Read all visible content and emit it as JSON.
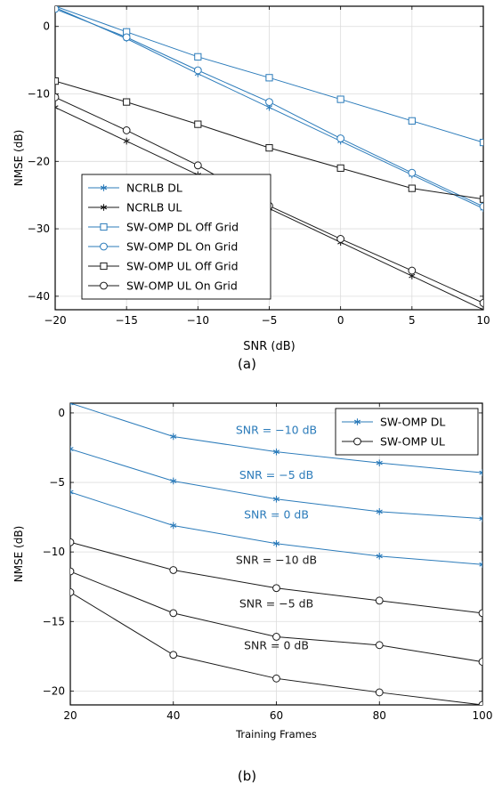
{
  "figure": {
    "captions": [
      "(a)",
      "(b)"
    ]
  },
  "colors": {
    "blue": "#2b7bba",
    "black": "#1a1a1a",
    "grid": "#dcdcdc"
  },
  "chart_data": [
    {
      "type": "line",
      "xlabel": "SNR (dB)",
      "ylabel": "NMSE (dB)",
      "xlim": [
        -20,
        10
      ],
      "ylim": [
        -42,
        3
      ],
      "xticks": [
        -20,
        -15,
        -10,
        -5,
        0,
        5,
        10
      ],
      "yticks": [
        0,
        -10,
        -20,
        -30,
        -40
      ],
      "xtick_labels": [
        "−20",
        "−15",
        "−10",
        "−5",
        "0",
        "5",
        "10"
      ],
      "ytick_labels": [
        "0",
        "−10",
        "−20",
        "−30",
        "−40"
      ],
      "grid": true,
      "legend_position": "bottom-left",
      "x": [
        -20,
        -15,
        -10,
        -5,
        0,
        5,
        10
      ],
      "series": [
        {
          "name": "NCRLB DL",
          "color": "blue",
          "marker": "star",
          "values": [
            2.8,
            -1.8,
            -7.0,
            -12.0,
            -17.0,
            -22.0,
            -27.0
          ]
        },
        {
          "name": "NCRLB UL",
          "color": "black",
          "marker": "star",
          "values": [
            -12.0,
            -17.0,
            -22.0,
            -27.0,
            -32.0,
            -37.0,
            -42.0
          ]
        },
        {
          "name": "SW-OMP DL Off Grid",
          "color": "blue",
          "marker": "square",
          "values": [
            3.0,
            -0.8,
            -4.5,
            -7.6,
            -10.8,
            -14.0,
            -17.2
          ]
        },
        {
          "name": "SW-OMP DL On Grid",
          "color": "blue",
          "marker": "circle",
          "values": [
            2.6,
            -1.6,
            -6.5,
            -11.2,
            -16.6,
            -21.7,
            -26.7
          ]
        },
        {
          "name": "SW-OMP UL Off Grid",
          "color": "black",
          "marker": "square",
          "values": [
            -8.1,
            -11.2,
            -14.5,
            -18.0,
            -21.0,
            -24.0,
            -25.6
          ]
        },
        {
          "name": "SW-OMP UL On Grid",
          "color": "black",
          "marker": "circle",
          "values": [
            -10.5,
            -15.4,
            -20.6,
            -26.6,
            -31.5,
            -36.2,
            -41.0
          ]
        }
      ]
    },
    {
      "type": "line",
      "xlabel": "Training Frames",
      "ylabel": "NMSE (dB)",
      "xlim": [
        20,
        100
      ],
      "ylim": [
        -21,
        0.7
      ],
      "xticks": [
        20,
        40,
        60,
        80,
        100
      ],
      "yticks": [
        0,
        -5,
        -10,
        -15,
        -20
      ],
      "xtick_labels": [
        "20",
        "40",
        "60",
        "80",
        "100"
      ],
      "ytick_labels": [
        "0",
        "−5",
        "−10",
        "−15",
        "−20"
      ],
      "grid": true,
      "legend_position": "top-right",
      "legend": [
        {
          "name": "SW-OMP DL",
          "color": "blue",
          "marker": "star"
        },
        {
          "name": "SW-OMP UL",
          "color": "black",
          "marker": "circle"
        }
      ],
      "x": [
        20,
        40,
        60,
        80,
        100
      ],
      "series": [
        {
          "color": "blue",
          "marker": "star",
          "values": [
            0.7,
            -1.7,
            -2.8,
            -3.6,
            -4.3
          ]
        },
        {
          "color": "blue",
          "marker": "star",
          "values": [
            -2.6,
            -4.9,
            -6.2,
            -7.1,
            -7.6
          ]
        },
        {
          "color": "blue",
          "marker": "star",
          "values": [
            -5.7,
            -8.1,
            -9.4,
            -10.3,
            -10.9
          ]
        },
        {
          "color": "black",
          "marker": "circle",
          "values": [
            -9.3,
            -11.3,
            -12.6,
            -13.5,
            -14.4
          ]
        },
        {
          "color": "black",
          "marker": "circle",
          "values": [
            -11.4,
            -14.4,
            -16.1,
            -16.7,
            -17.9
          ]
        },
        {
          "color": "black",
          "marker": "circle",
          "values": [
            -12.9,
            -17.4,
            -19.1,
            -20.1,
            -21.0
          ]
        }
      ],
      "annotations": [
        {
          "text": "SNR = −10 dB",
          "color": "blue",
          "x": 60,
          "y": -1.5
        },
        {
          "text": "SNR = −5 dB",
          "color": "blue",
          "x": 60,
          "y": -4.75
        },
        {
          "text": "SNR = 0 dB",
          "color": "blue",
          "x": 60,
          "y": -7.6
        },
        {
          "text": "SNR = −10 dB",
          "color": "black",
          "x": 60,
          "y": -10.85
        },
        {
          "text": "SNR = −5 dB",
          "color": "black",
          "x": 60,
          "y": -14.0
        },
        {
          "text": "SNR = 0 dB",
          "color": "black",
          "x": 60,
          "y": -17.0
        }
      ]
    }
  ]
}
